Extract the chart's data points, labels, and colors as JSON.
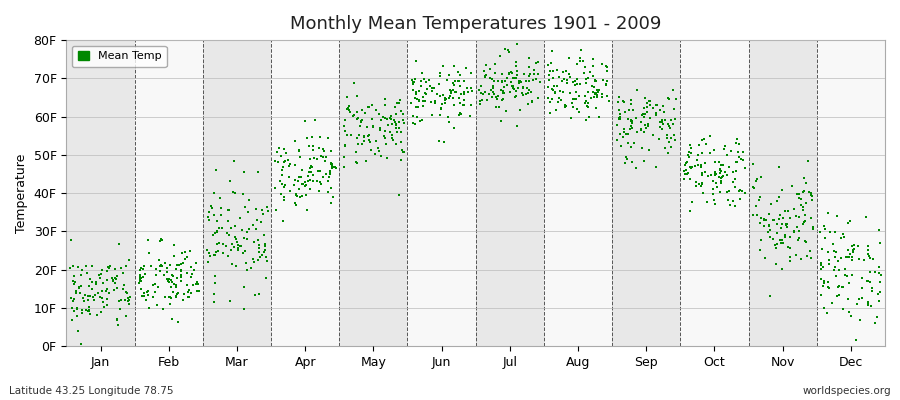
{
  "title": "Monthly Mean Temperatures 1901 - 2009",
  "ylabel": "Temperature",
  "bottom_left": "Latitude 43.25 Longitude 78.75",
  "bottom_right": "worldspecies.org",
  "legend_label": "Mean Temp",
  "dot_color": "#008800",
  "background_color": "#ffffff",
  "plot_bg_color": "#ffffff",
  "band_color_odd": "#e8e8e8",
  "band_color_even": "#f8f8f8",
  "ylim": [
    0,
    80
  ],
  "ytick_labels": [
    "0F",
    "10F",
    "20F",
    "30F",
    "40F",
    "50F",
    "60F",
    "70F",
    "80F"
  ],
  "ytick_values": [
    0,
    10,
    20,
    30,
    40,
    50,
    60,
    70,
    80
  ],
  "months": [
    "Jan",
    "Feb",
    "Mar",
    "Apr",
    "May",
    "Jun",
    "Jul",
    "Aug",
    "Sep",
    "Oct",
    "Nov",
    "Dec"
  ],
  "month_means": [
    14,
    17,
    29,
    46,
    57,
    65,
    69,
    67,
    58,
    46,
    33,
    20
  ],
  "month_stds": [
    5,
    5,
    7,
    5,
    5,
    4,
    4,
    4,
    5,
    5,
    7,
    7
  ],
  "n_years": 109,
  "seed": 42
}
